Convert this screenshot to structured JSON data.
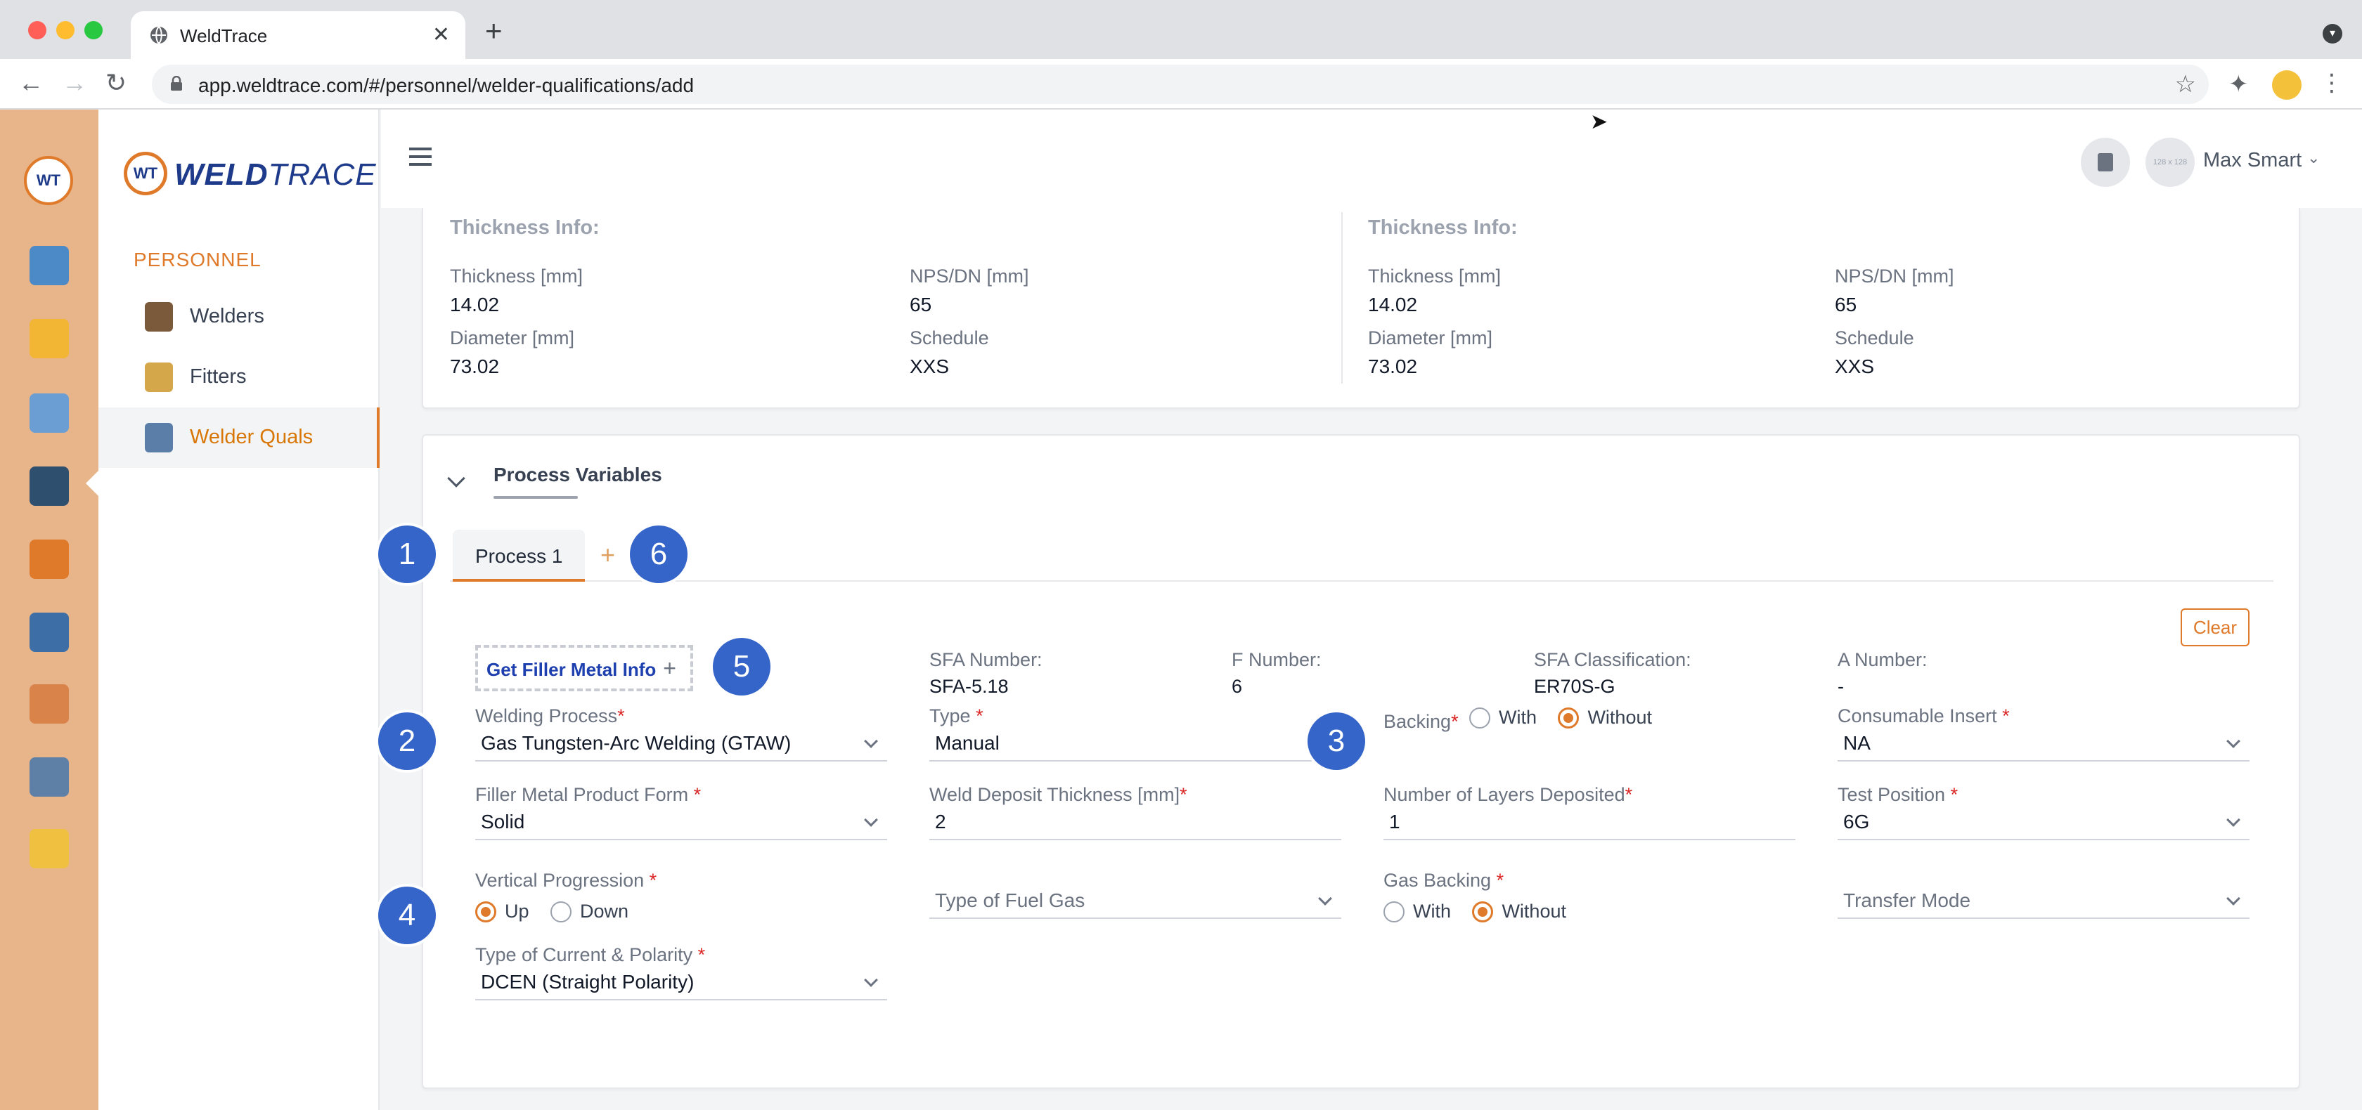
{
  "browser": {
    "tab_title": "WeldTrace",
    "url": "app.weldtrace.com/#/personnel/welder-qualifications/add"
  },
  "brand": {
    "weld": "WELD",
    "trace": "TRACE",
    "mark": "WT"
  },
  "sidebar": {
    "section": "PERSONNEL",
    "items": [
      {
        "label": "Welders"
      },
      {
        "label": "Fitters"
      },
      {
        "label": "Welder Quals"
      }
    ]
  },
  "header": {
    "avatar_text": "128 x 128",
    "user_name": "Max Smart"
  },
  "thickness": [
    {
      "heading": "Thickness Info:",
      "thickness_label": "Thickness [mm]",
      "thickness_value": "14.02",
      "nps_label": "NPS/DN [mm]",
      "nps_value": "65",
      "diameter_label": "Diameter [mm]",
      "diameter_value": "73.02",
      "schedule_label": "Schedule",
      "schedule_value": "XXS"
    },
    {
      "heading": "Thickness Info:",
      "thickness_label": "Thickness [mm]",
      "thickness_value": "14.02",
      "nps_label": "NPS/DN [mm]",
      "nps_value": "65",
      "diameter_label": "Diameter [mm]",
      "diameter_value": "73.02",
      "schedule_label": "Schedule",
      "schedule_value": "XXS"
    }
  ],
  "process": {
    "section_title": "Process Variables",
    "tab_label": "Process 1",
    "clear_label": "Clear",
    "filler_button": "Get Filler Metal Info",
    "sfa_number_label": "SFA Number:",
    "sfa_number_value": "SFA-5.18",
    "f_number_label": "F Number:",
    "f_number_value": "6",
    "sfa_class_label": "SFA Classification:",
    "sfa_class_value": "ER70S-G",
    "a_number_label": "A Number:",
    "a_number_value": "-",
    "welding_process_label": "Welding Process",
    "welding_process_value": "Gas Tungsten-Arc Welding (GTAW)",
    "type_label": "Type",
    "type_value": "Manual",
    "backing_label": "Backing",
    "backing_with": "With",
    "backing_without": "Without",
    "consumable_label": "Consumable Insert",
    "consumable_value": "NA",
    "filler_form_label": "Filler Metal Product Form",
    "filler_form_value": "Solid",
    "deposit_label": "Weld Deposit Thickness [mm]",
    "deposit_value": "2",
    "layers_label": "Number of Layers Deposited",
    "layers_value": "1",
    "test_position_label": "Test Position",
    "test_position_value": "6G",
    "vertical_label": "Vertical Progression",
    "vertical_up": "Up",
    "vertical_down": "Down",
    "fuel_gas_placeholder": "Type of Fuel Gas",
    "gas_backing_label": "Gas Backing",
    "gas_backing_with": "With",
    "gas_backing_without": "Without",
    "transfer_mode_placeholder": "Transfer Mode",
    "current_label": "Type of Current & Polarity",
    "current_value": "DCEN (Straight Polarity)"
  },
  "badges": [
    "1",
    "2",
    "3",
    "4",
    "5",
    "6"
  ],
  "colors": {
    "accent": "#e07a2b",
    "rail": "#e8b48a",
    "badge": "#3565c8",
    "brand": "#1e3a8a"
  }
}
